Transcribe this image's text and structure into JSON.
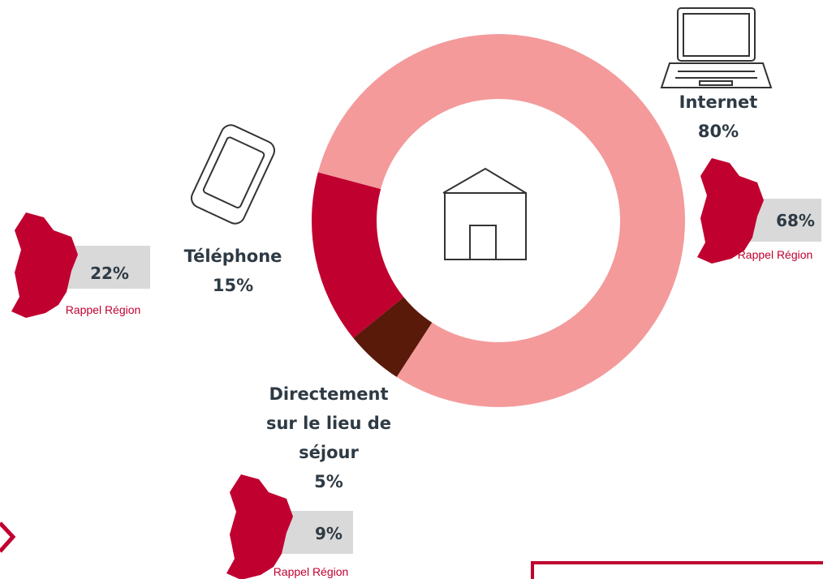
{
  "chart_data": {
    "type": "pie",
    "donut": true,
    "categories": [
      "Internet",
      "Directement sur le lieu de séjour",
      "Téléphone"
    ],
    "values": [
      80,
      5,
      15
    ],
    "value_labels": [
      "80%",
      "5%",
      "15%"
    ],
    "colors": [
      "#f49a9b",
      "#5a1a0a",
      "#c0002f"
    ],
    "region_recall": {
      "label": "Rappel Région",
      "values": [
        68,
        9,
        22
      ],
      "value_labels": [
        "68%",
        "9%",
        "22%"
      ],
      "color": "#c0002f"
    }
  }
}
